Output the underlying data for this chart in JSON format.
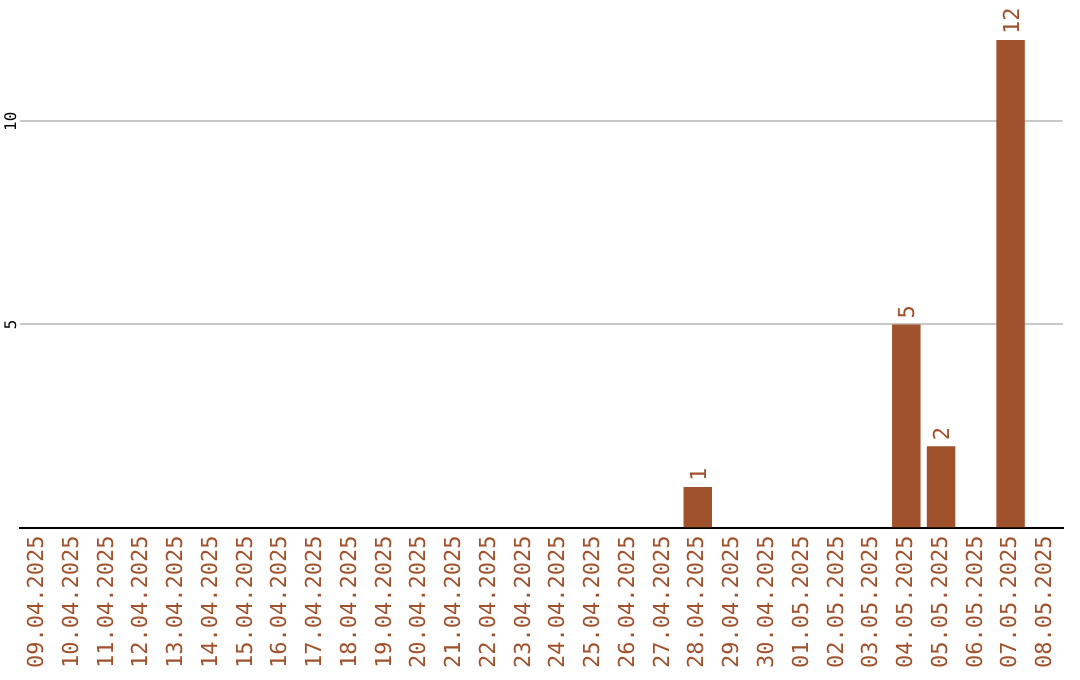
{
  "chart_data": {
    "type": "bar",
    "categories": [
      "09.04.2025",
      "10.04.2025",
      "11.04.2025",
      "12.04.2025",
      "13.04.2025",
      "14.04.2025",
      "15.04.2025",
      "16.04.2025",
      "17.04.2025",
      "18.04.2025",
      "19.04.2025",
      "20.04.2025",
      "21.04.2025",
      "22.04.2025",
      "23.04.2025",
      "24.04.2025",
      "25.04.2025",
      "26.04.2025",
      "27.04.2025",
      "28.04.2025",
      "29.04.2025",
      "30.04.2025",
      "01.05.2025",
      "02.05.2025",
      "03.05.2025",
      "04.05.2025",
      "05.05.2025",
      "06.05.2025",
      "07.05.2025",
      "08.05.2025"
    ],
    "values": [
      0,
      0,
      0,
      0,
      0,
      0,
      0,
      0,
      0,
      0,
      0,
      0,
      0,
      0,
      0,
      0,
      0,
      0,
      0,
      1,
      0,
      0,
      0,
      0,
      0,
      5,
      2,
      0,
      12,
      0
    ],
    "value_labels": [
      null,
      null,
      null,
      null,
      null,
      null,
      null,
      null,
      null,
      null,
      null,
      null,
      null,
      null,
      null,
      null,
      null,
      null,
      null,
      "1",
      null,
      null,
      null,
      null,
      null,
      "5",
      "2",
      null,
      "12",
      null
    ],
    "color": "#a0522d",
    "ylim": [
      0,
      12
    ],
    "yticks": [
      5,
      10
    ],
    "grid": "y",
    "legend": false
  }
}
